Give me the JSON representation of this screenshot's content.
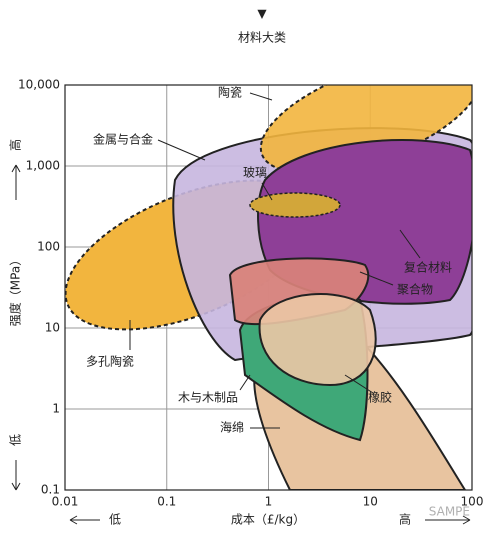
{
  "chart_data": {
    "type": "ashby",
    "top_marker": "▼",
    "title": "材料大类",
    "x_label": "成本（£/kg）",
    "y_label": "强度（MPa）",
    "x_low": "低",
    "x_high": "高",
    "y_low": "低",
    "y_high": "高",
    "xlog": true,
    "ylog": true,
    "grid": true,
    "xlim": [
      0.01,
      100
    ],
    "ylim": [
      0.1,
      10000
    ],
    "xticks": [
      0.01,
      0.1,
      1,
      10,
      100
    ],
    "yticks": [
      0.1,
      1,
      10,
      100,
      {
        "value": 1000,
        "label": "1,000"
      },
      {
        "value": 10000,
        "label": "10,000"
      }
    ],
    "regions": [
      "陶瓷",
      "金属与合金",
      "玻璃",
      "复合材料",
      "聚合物",
      "多孔陶瓷",
      "木与木制品",
      "橡胶",
      "海绵"
    ],
    "watermark": "SAMPE"
  }
}
